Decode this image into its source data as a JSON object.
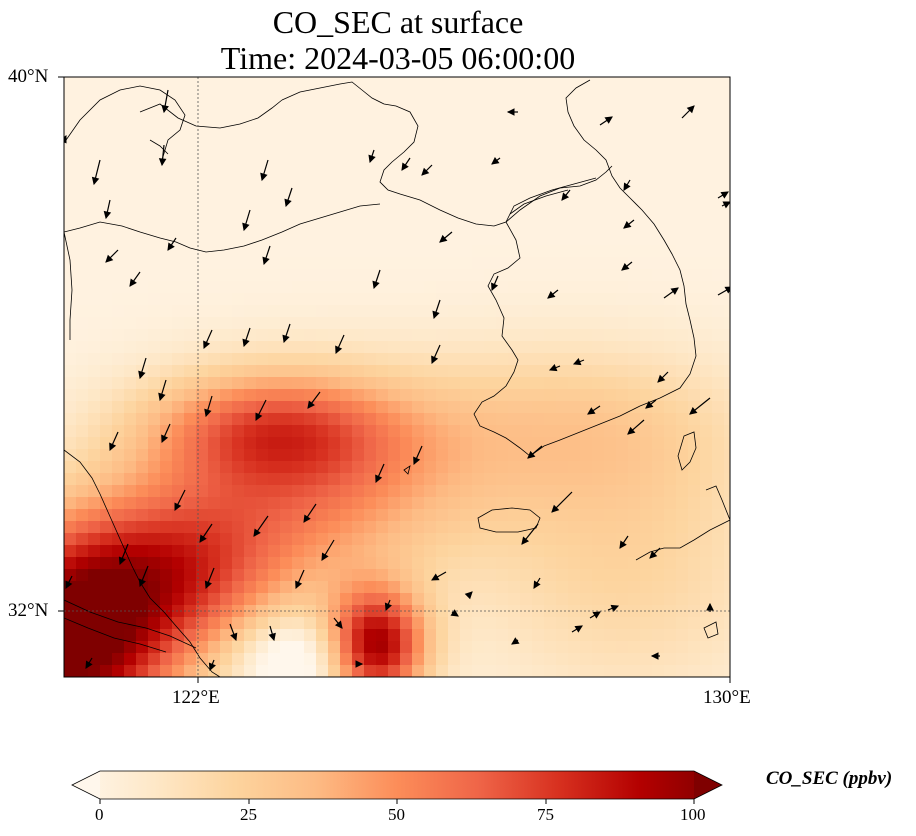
{
  "title": {
    "line1": "CO_SEC at surface",
    "line2": "Time: 2024-03-05 06:00:00"
  },
  "axes": {
    "lat_labels": [
      "40°N",
      "32°N"
    ],
    "lon_labels": [
      "122°E",
      "130°E"
    ],
    "lon_range": [
      120,
      130
    ],
    "lat_range": [
      31,
      40
    ],
    "gridlines": {
      "lon": [
        122
      ],
      "lat": [
        32
      ]
    }
  },
  "colorbar": {
    "label": "CO_SEC (ppbv)",
    "ticks": [
      "0",
      "25",
      "50",
      "75",
      "100"
    ],
    "range": [
      0,
      100
    ],
    "extend": "both",
    "colormap": [
      "#fff7ec",
      "#fee8c8",
      "#fdd49e",
      "#fdbb84",
      "#fc8d59",
      "#ef6548",
      "#d7301f",
      "#b30000",
      "#7f0000"
    ]
  },
  "map_layers": [
    "concentration-field",
    "coastlines",
    "wind-vectors"
  ]
}
